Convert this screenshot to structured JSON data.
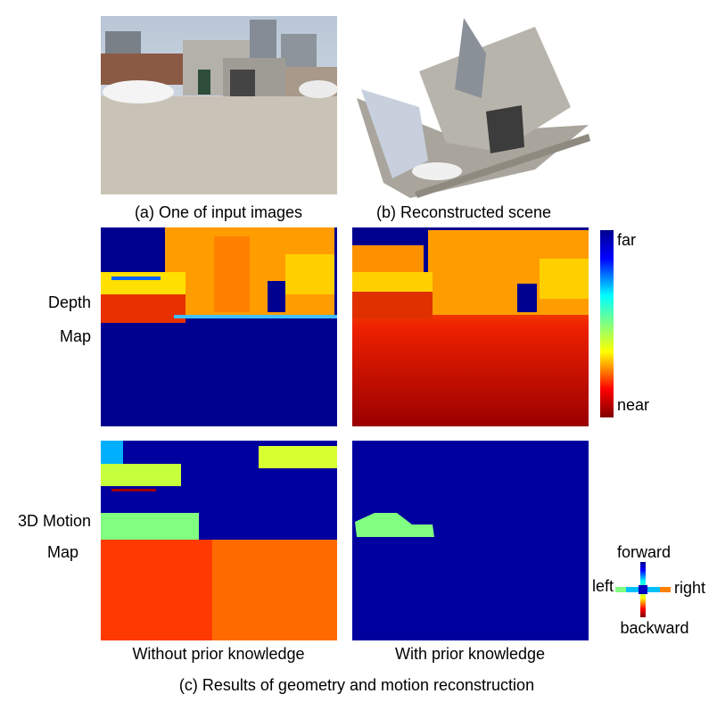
{
  "captions": {
    "a": "(a) One of input images",
    "b": "(b) Reconstructed scene",
    "c": "(c) Results of geometry and motion reconstruction"
  },
  "row_labels": {
    "depth": [
      "Depth",
      "Map"
    ],
    "motion": [
      "3D Motion",
      "Map"
    ]
  },
  "column_labels": [
    "Without prior knowledge",
    "With prior knowledge"
  ],
  "colorbar": {
    "top": "far",
    "bottom": "near"
  },
  "direction_legend": {
    "forward": "forward",
    "left": "left",
    "right": "right",
    "backward": "backward"
  }
}
